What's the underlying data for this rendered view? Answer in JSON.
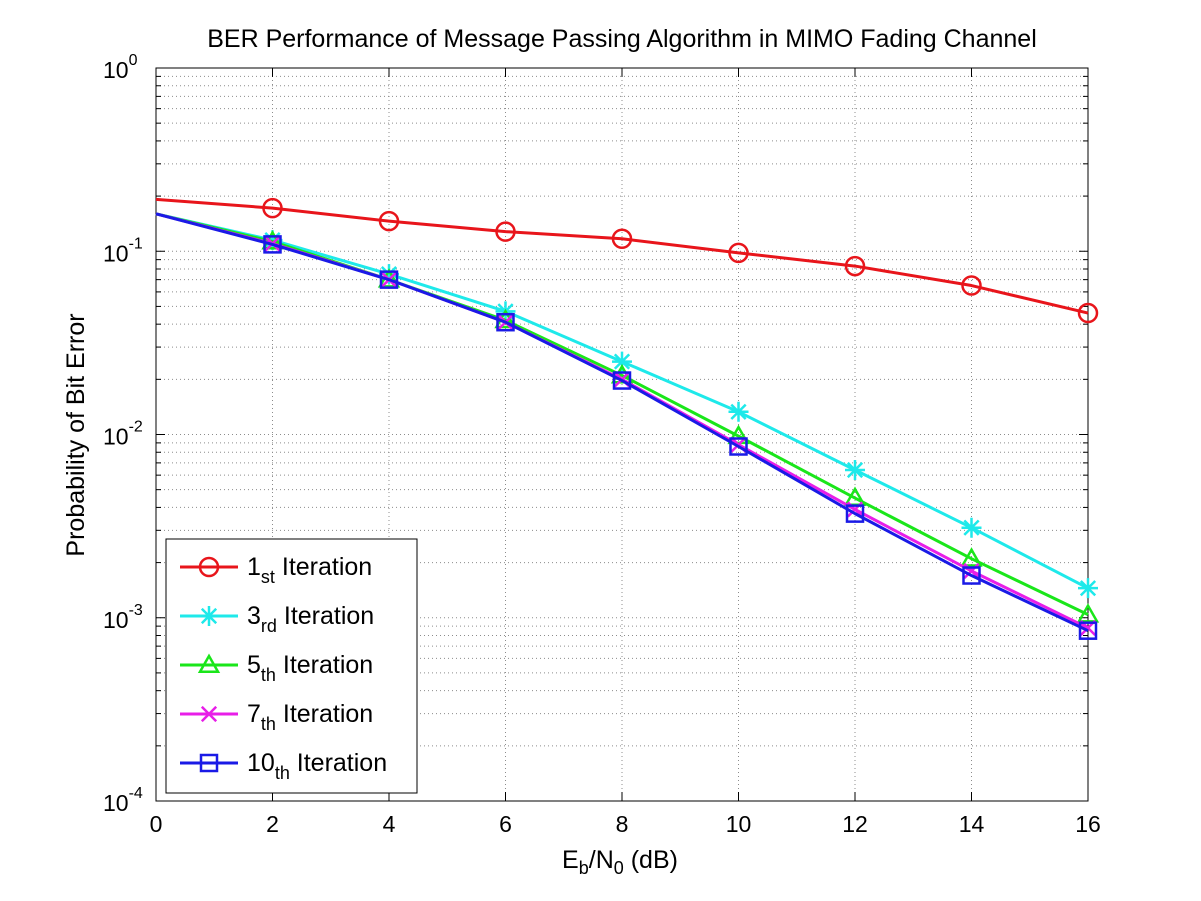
{
  "chart_data": {
    "type": "line",
    "title": "BER Performance of Message Passing Algorithm in MIMO Fading Channel",
    "xlabel": {
      "main": "E",
      "sub1": "b",
      "mid": "/N",
      "sub2": "0",
      "tail": " (dB)"
    },
    "ylabel": "Probability of Bit Error",
    "xlim": [
      0,
      16
    ],
    "ylim": [
      0.0001,
      1
    ],
    "yscale": "log",
    "grid": true,
    "legend_position": "bottom-left",
    "x_ticks": [
      "0",
      "2",
      "4",
      "6",
      "8",
      "10",
      "12",
      "14",
      "16"
    ],
    "y_ticks": [
      {
        "base": "10",
        "exp": "0"
      },
      {
        "base": "10",
        "exp": "-1"
      },
      {
        "base": "10",
        "exp": "-2"
      },
      {
        "base": "10",
        "exp": "-3"
      },
      {
        "base": "10",
        "exp": "-4"
      }
    ],
    "x": [
      0,
      2,
      4,
      6,
      8,
      10,
      12,
      14,
      16
    ],
    "series": [
      {
        "name": "1st Iteration",
        "label_main": "1",
        "label_sub": "st",
        "label_tail": " Iteration",
        "color": "#e8151b",
        "marker": "circle",
        "values": [
          0.192,
          0.172,
          0.146,
          0.128,
          0.117,
          0.098,
          0.083,
          0.065,
          0.046
        ]
      },
      {
        "name": "3rd Iteration",
        "label_main": "3",
        "label_sub": "rd",
        "label_tail": " Iteration",
        "color": "#1ee9ea",
        "marker": "star",
        "values": [
          0.16,
          0.115,
          0.075,
          0.047,
          0.025,
          0.0133,
          0.0064,
          0.0031,
          0.00145
        ]
      },
      {
        "name": "5th Iteration",
        "label_main": "5",
        "label_sub": "th",
        "label_tail": " Iteration",
        "color": "#1ae61a",
        "marker": "triangle",
        "values": [
          0.16,
          0.113,
          0.07,
          0.042,
          0.021,
          0.0098,
          0.0045,
          0.0021,
          0.00104
        ]
      },
      {
        "name": "7th Iteration",
        "label_main": "7",
        "label_sub": "th",
        "label_tail": " Iteration",
        "color": "#e81ee8",
        "marker": "x",
        "values": [
          0.16,
          0.11,
          0.07,
          0.041,
          0.02,
          0.0088,
          0.0039,
          0.0018,
          0.00088
        ]
      },
      {
        "name": "10th Iteration",
        "label_main": "10",
        "label_sub": "th",
        "label_tail": " Iteration",
        "color": "#1a1ae6",
        "marker": "square",
        "values": [
          0.16,
          0.109,
          0.07,
          0.041,
          0.0197,
          0.0086,
          0.0037,
          0.0017,
          0.00085
        ]
      }
    ]
  }
}
